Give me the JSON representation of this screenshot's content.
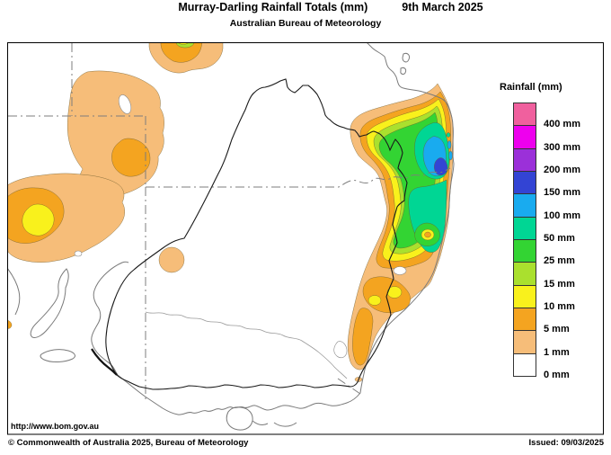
{
  "title": {
    "main": "Murray-Darling Rainfall Totals (mm)",
    "date": "9th March 2025",
    "subtitle": "Australian Bureau of Meteorology"
  },
  "legend": {
    "title": "Rainfall (mm)",
    "entries": [
      {
        "label": "400 mm",
        "color": "#F0609E"
      },
      {
        "label": "300 mm",
        "color": "#EE00EE"
      },
      {
        "label": "200 mm",
        "color": "#9B30D9"
      },
      {
        "label": "150 mm",
        "color": "#3344D4"
      },
      {
        "label": "100 mm",
        "color": "#19ABEF"
      },
      {
        "label": "50 mm",
        "color": "#00D694"
      },
      {
        "label": "25 mm",
        "color": "#33D433"
      },
      {
        "label": "15 mm",
        "color": "#AAE02E"
      },
      {
        "label": "10 mm",
        "color": "#F9F11C"
      },
      {
        "label": "5 mm",
        "color": "#F4A420"
      },
      {
        "label": "1 mm",
        "color": "#F6BD79"
      },
      {
        "label": "0 mm",
        "color": "#FFFFFF"
      }
    ]
  },
  "footer": {
    "url": "http://www.bom.gov.au",
    "copyright": "© Commonwealth of Australia 2025, Bureau of Meteorology",
    "issued": "Issued: 09/03/2025"
  },
  "map": {
    "frame_color": "#000000",
    "coastline_color": "#7a7a7a",
    "state_border_color": "#7d7d7d",
    "basin_boundary_color": "#1a1a1a",
    "river_color": "#9a9a9a",
    "sea_color": "#ffffff"
  }
}
